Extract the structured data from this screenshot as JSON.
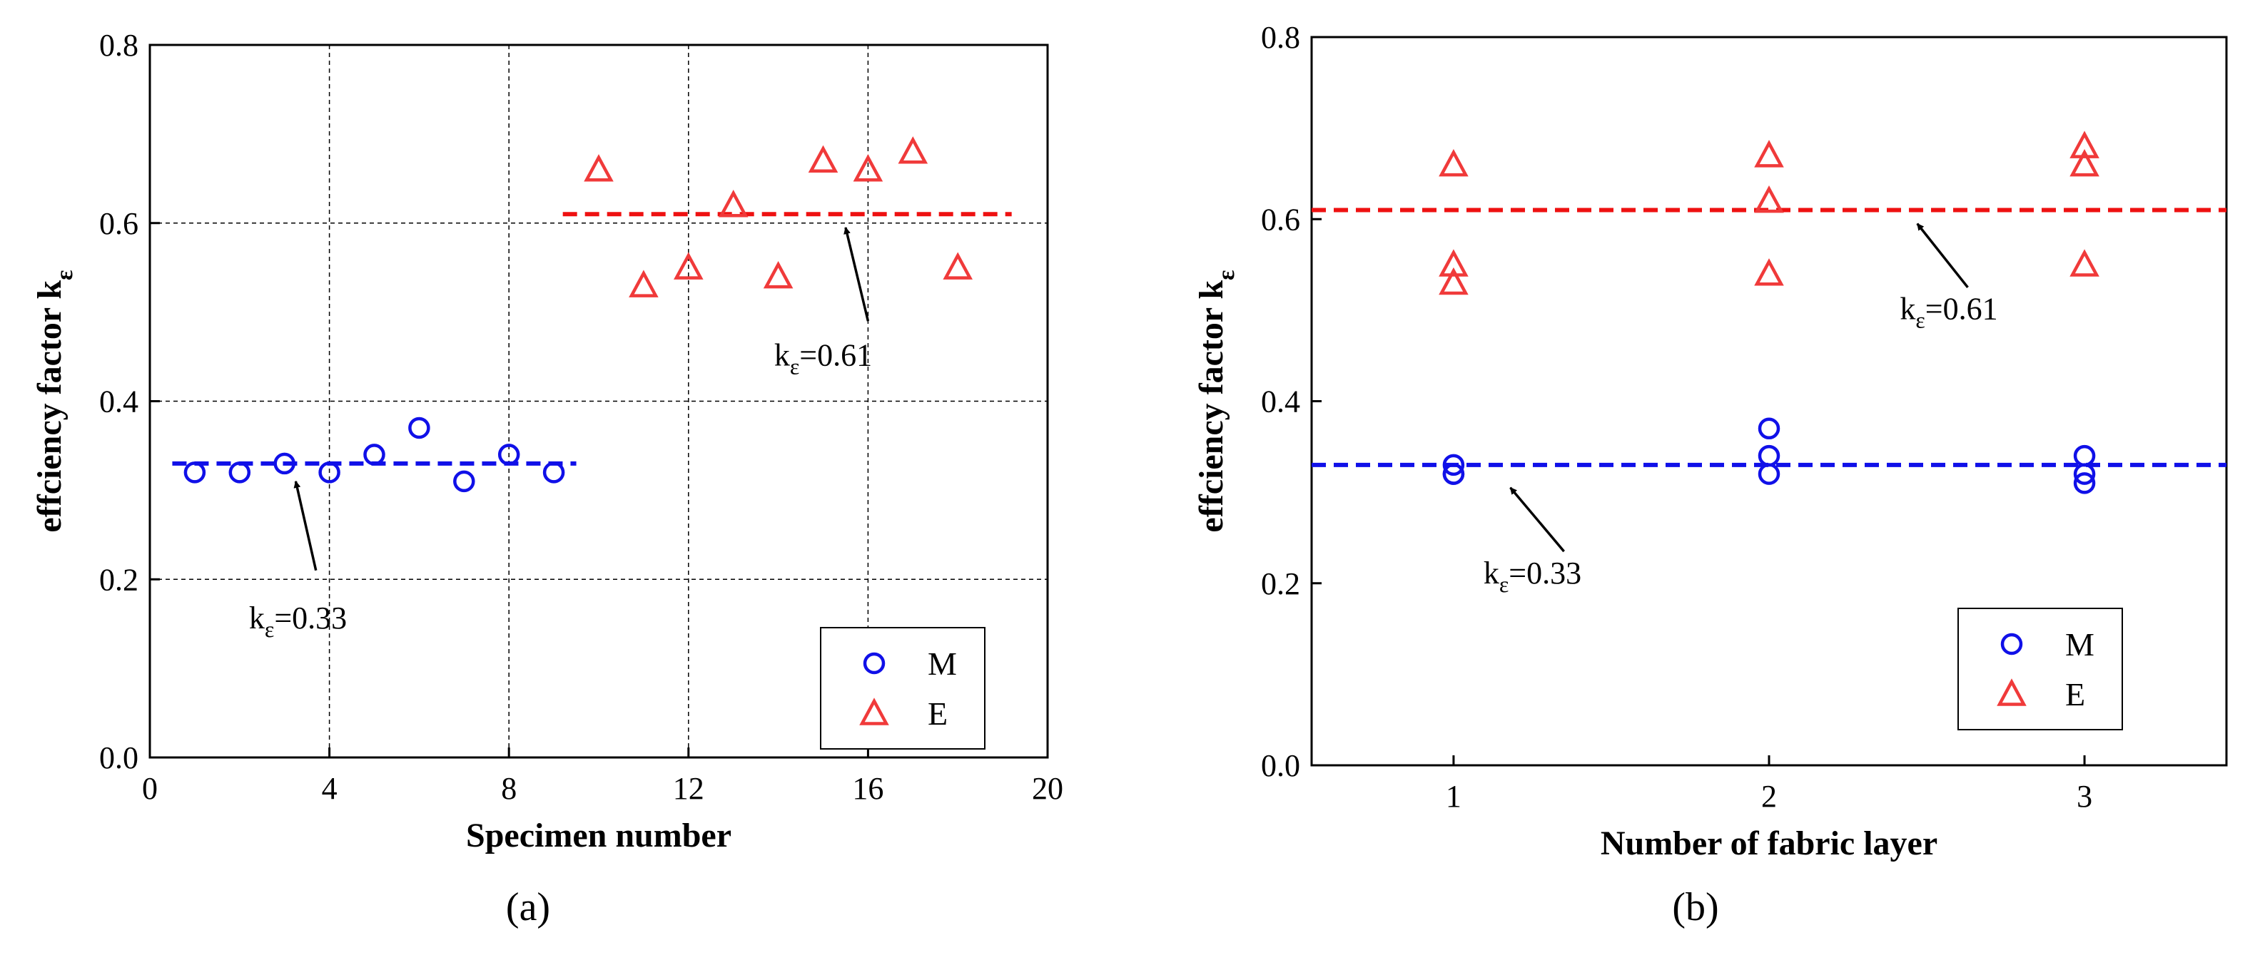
{
  "chart_data": [
    {
      "type": "scatter",
      "panel_label": "(a)",
      "xlabel": "Specimen number",
      "ylabel": "effciency factor k",
      "ylabel_sub": "ε",
      "xlim": [
        0,
        20
      ],
      "ylim": [
        0,
        0.8
      ],
      "xticks": [
        "0",
        "4",
        "8",
        "12",
        "16",
        "20"
      ],
      "yticks": [
        "0.0",
        "0.2",
        "0.4",
        "0.6",
        "0.8"
      ],
      "grid": true,
      "legend_position": "bottom-right",
      "series": [
        {
          "name": "M",
          "marker": "circle",
          "color": "#1010e8",
          "x": [
            1,
            2,
            3,
            4,
            5,
            6,
            7,
            8,
            9
          ],
          "y": [
            0.32,
            0.32,
            0.33,
            0.32,
            0.34,
            0.37,
            0.31,
            0.34,
            0.32
          ]
        },
        {
          "name": "E",
          "marker": "triangle",
          "color": "#f03a3a",
          "x": [
            10,
            11,
            12,
            13,
            14,
            15,
            16,
            17,
            18
          ],
          "y": [
            0.66,
            0.53,
            0.55,
            0.62,
            0.54,
            0.67,
            0.66,
            0.68,
            0.55
          ]
        }
      ],
      "reference_lines": [
        {
          "series": "M",
          "y": 0.33,
          "x_range": [
            0.5,
            9.5
          ],
          "color": "#1010e8"
        },
        {
          "series": "E",
          "y": 0.61,
          "x_range": [
            9.2,
            19.2
          ],
          "color": "#ee1111"
        }
      ],
      "annotations": [
        {
          "text_main": "k",
          "text_sub": "ε",
          "text_rest": "=0.33",
          "text_x": 3.3,
          "text_y": 0.145,
          "arrow_from": [
            3.7,
            0.21
          ],
          "arrow_to": [
            3.25,
            0.31
          ]
        },
        {
          "text_main": "k",
          "text_sub": "ε",
          "text_rest": "=0.61",
          "text_x": 15.0,
          "text_y": 0.44,
          "arrow_from": [
            16.0,
            0.49
          ],
          "arrow_to": [
            15.5,
            0.595
          ]
        }
      ]
    },
    {
      "type": "scatter",
      "panel_label": "(b)",
      "xlabel": "Number of fabric layer",
      "ylabel": "effciency factor k",
      "ylabel_sub": "ε",
      "xlim": [
        0.55,
        3.45
      ],
      "ylim": [
        0,
        0.8
      ],
      "xticks": [
        "1",
        "2",
        "3"
      ],
      "xtick_values": [
        1,
        2,
        3
      ],
      "yticks": [
        "0.0",
        "0.2",
        "0.4",
        "0.6",
        "0.8"
      ],
      "grid": false,
      "legend_position": "bottom-right",
      "series": [
        {
          "name": "M",
          "marker": "circle",
          "color": "#1010e8",
          "x": [
            1,
            1,
            1,
            2,
            2,
            2,
            3,
            3,
            3
          ],
          "y": [
            0.32,
            0.33,
            0.32,
            0.32,
            0.34,
            0.37,
            0.31,
            0.34,
            0.32
          ]
        },
        {
          "name": "E",
          "marker": "triangle",
          "color": "#f03a3a",
          "x": [
            1,
            1,
            1,
            2,
            2,
            2,
            3,
            3,
            3
          ],
          "y": [
            0.66,
            0.53,
            0.55,
            0.62,
            0.54,
            0.67,
            0.66,
            0.68,
            0.55
          ]
        }
      ],
      "reference_lines": [
        {
          "series": "M",
          "y": 0.33,
          "x_range": [
            0.55,
            3.45
          ],
          "color": "#1010e8"
        },
        {
          "series": "E",
          "y": 0.61,
          "x_range": [
            0.55,
            3.45
          ],
          "color": "#ee1111"
        }
      ],
      "annotations": [
        {
          "text_main": "k",
          "text_sub": "ε",
          "text_rest": "=0.33",
          "text_x": 1.25,
          "text_y": 0.2,
          "arrow_from": [
            1.35,
            0.235
          ],
          "arrow_to": [
            1.18,
            0.305
          ]
        },
        {
          "text_main": "k",
          "text_sub": "ε",
          "text_rest": "=0.61",
          "text_x": 2.57,
          "text_y": 0.49,
          "arrow_from": [
            2.63,
            0.525
          ],
          "arrow_to": [
            2.47,
            0.595
          ]
        }
      ]
    }
  ]
}
